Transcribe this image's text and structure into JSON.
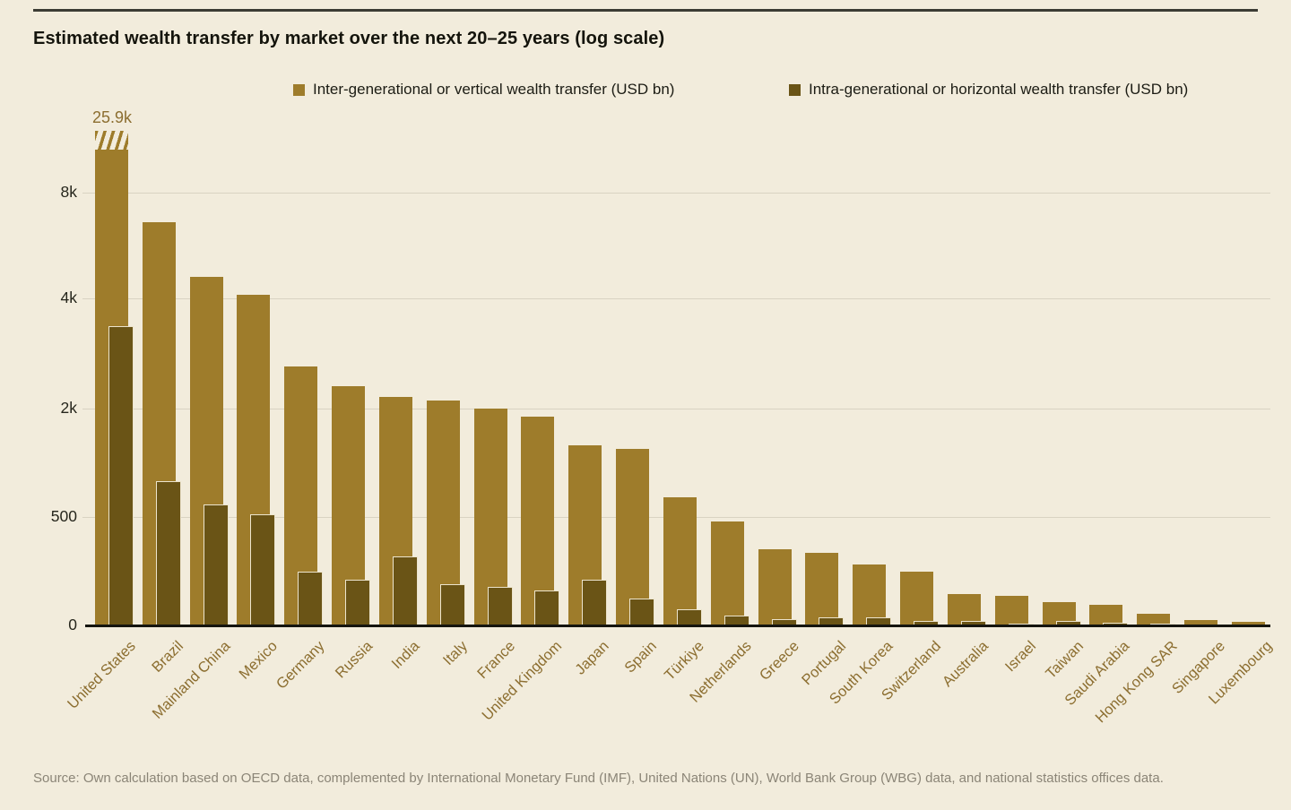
{
  "header": {
    "title": "Estimated wealth transfer by market over the next 20–25 years (log scale)"
  },
  "legend": {
    "items": [
      {
        "label": "Inter-generational or vertical wealth transfer (USD bn)",
        "color": "#9e7c2b"
      },
      {
        "label": "Intra-generational or horizontal wealth transfer (USD bn)",
        "color": "#6a5416"
      }
    ]
  },
  "chart_data": {
    "type": "bar",
    "scale": "log",
    "unit": "USD bn",
    "title": "Estimated wealth transfer by market over the next 20–25 years (log scale)",
    "categories": [
      "United States",
      "Brazil",
      "Mainland China",
      "Mexico",
      "Germany",
      "Russia",
      "India",
      "Italy",
      "France",
      "United Kingdom",
      "Japan",
      "Spain",
      "Türkiye",
      "Netherlands",
      "Greece",
      "Portugal",
      "South Korea",
      "Switzerland",
      "Australia",
      "Israel",
      "Taiwan",
      "Saudi Arabia",
      "Hong Kong SAR",
      "Singapore",
      "Luxembourg"
    ],
    "series": [
      {
        "name": "Inter-generational or vertical wealth transfer (USD bn)",
        "color": "#9e7c2b",
        "values": [
          25900,
          6600,
          4600,
          4100,
          2600,
          2300,
          2150,
          2100,
          2000,
          1800,
          1250,
          1200,
          640,
          480,
          350,
          335,
          280,
          250,
          145,
          135,
          107,
          95,
          54,
          25,
          18
        ]
      },
      {
        "name": "Intra-generational or horizontal wealth transfer (USD bn)",
        "color": "#6a5416",
        "values": [
          3350,
          790,
          590,
          515,
          250,
          210,
          320,
          190,
          178,
          160,
          210,
          124,
          74,
          45,
          29,
          37,
          37,
          21,
          21,
          10,
          22,
          14,
          7,
          4,
          3
        ]
      }
    ],
    "y_ticks": [
      0,
      500,
      2000,
      4000,
      8000
    ],
    "y_tick_labels": [
      "0",
      "500",
      "2k",
      "4k",
      "8k"
    ],
    "annotations": [
      {
        "text": "25.9k",
        "category": "United States",
        "series": 0,
        "clipped": true
      }
    ],
    "grid": "horizontal",
    "legend_position": "top"
  },
  "colors": {
    "background": "#f2ecdc",
    "gridline": "#d9d3c2",
    "axis_line": "#15150f",
    "x_label": "#8c6e30",
    "annotation": "#8c6e30",
    "source_text": "#8b8577"
  },
  "footer": {
    "source": "Source: Own calculation based on OECD data, complemented by International Monetary Fund (IMF), United Nations (UN), World Bank Group (WBG) data, and national statistics offices data."
  }
}
